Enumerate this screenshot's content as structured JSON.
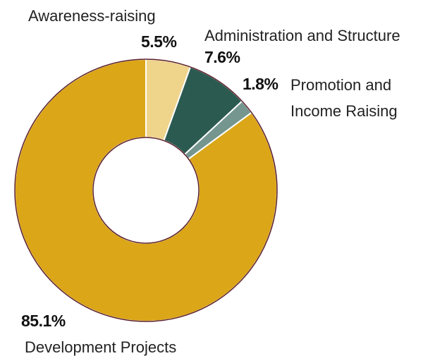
{
  "chart_data": {
    "type": "pie",
    "categories": [
      "Awareness-raising",
      "Administration and Structure",
      "Promotion and Income Raising",
      "Development Projects"
    ],
    "values": [
      5.5,
      7.6,
      1.8,
      85.1
    ],
    "value_labels": [
      "5.5%",
      "7.6%",
      "1.8%",
      "85.1%"
    ],
    "colors": [
      "#efd48c",
      "#2b5a50",
      "#74968f",
      "#dba617"
    ]
  }
}
